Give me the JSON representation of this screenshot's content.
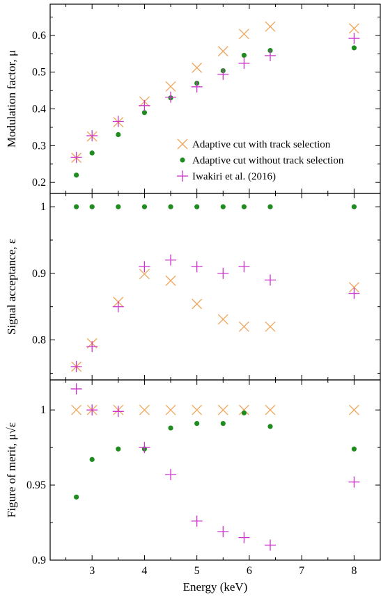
{
  "colors": {
    "adaptive_with": "#f0a55a",
    "adaptive_without": "#1f8c1f",
    "iwakiri": "#cc33cc"
  },
  "chart_data": [
    {
      "type": "scatter",
      "panel": "top",
      "ylabel": "Modulation factor, μ",
      "ylim": [
        0.17,
        0.685
      ],
      "yticks": [
        "0.2",
        "0.3",
        "0.4",
        "0.5",
        "0.6"
      ],
      "xlim": [
        2.2,
        8.5
      ],
      "legend_position": "lower-right",
      "series": [
        {
          "name": "Adaptive cut with track selection",
          "marker": "x",
          "x": [
            2.7,
            3.0,
            3.5,
            4.0,
            4.5,
            5.0,
            5.5,
            5.9,
            6.4,
            8.0
          ],
          "y": [
            0.267,
            0.325,
            0.364,
            0.42,
            0.461,
            0.512,
            0.557,
            0.604,
            0.624,
            0.619
          ]
        },
        {
          "name": "Adaptive cut without track selection",
          "marker": "dot",
          "x": [
            2.7,
            3.0,
            3.5,
            4.0,
            4.5,
            5.0,
            5.5,
            5.9,
            6.4,
            8.0
          ],
          "y": [
            0.22,
            0.28,
            0.33,
            0.39,
            0.43,
            0.47,
            0.504,
            0.546,
            0.559,
            0.566
          ]
        },
        {
          "name": "Iwakiri et al. (2016)",
          "marker": "+",
          "x": [
            2.7,
            3.0,
            3.5,
            4.0,
            4.5,
            5.0,
            5.5,
            5.9,
            6.4,
            8.0
          ],
          "y": [
            0.268,
            0.327,
            0.366,
            0.409,
            0.432,
            0.46,
            0.494,
            0.524,
            0.545,
            0.592
          ]
        }
      ]
    },
    {
      "type": "scatter",
      "panel": "middle",
      "ylabel": "Signal acceptance, ε",
      "ylim": [
        0.74,
        1.02
      ],
      "yticks": [
        "0.8",
        "0.9",
        "1"
      ],
      "xlim": [
        2.2,
        8.5
      ],
      "series": [
        {
          "name": "Adaptive cut with track selection",
          "marker": "x",
          "x": [
            2.7,
            3.0,
            3.5,
            4.0,
            4.5,
            5.0,
            5.5,
            5.9,
            6.4,
            8.0
          ],
          "y": [
            0.76,
            0.795,
            0.857,
            0.899,
            0.889,
            0.854,
            0.831,
            0.82,
            0.82,
            0.879
          ]
        },
        {
          "name": "Adaptive cut without track selection",
          "marker": "dot",
          "x": [
            2.7,
            3.0,
            3.5,
            4.0,
            4.5,
            5.0,
            5.5,
            5.9,
            6.4,
            8.0
          ],
          "y": [
            1.0,
            1.0,
            1.0,
            1.0,
            1.0,
            1.0,
            1.0,
            1.0,
            1.0,
            1.0
          ]
        },
        {
          "name": "Iwakiri et al. (2016)",
          "marker": "+",
          "x": [
            2.7,
            3.0,
            3.5,
            4.0,
            4.5,
            5.0,
            5.5,
            5.9,
            6.4,
            8.0
          ],
          "y": [
            0.76,
            0.79,
            0.85,
            0.91,
            0.92,
            0.91,
            0.9,
            0.91,
            0.89,
            0.87
          ]
        }
      ]
    },
    {
      "type": "scatter",
      "panel": "bottom",
      "ylabel": "Figure of merit, μ√ε",
      "ylim": [
        0.9,
        1.02
      ],
      "yticks": [
        "0.9",
        "0.95",
        "1"
      ],
      "xlabel": "Energy (keV)",
      "xticks": [
        "3",
        "4",
        "5",
        "6",
        "7",
        "8"
      ],
      "xlim": [
        2.2,
        8.5
      ],
      "series": [
        {
          "name": "Adaptive cut with track selection",
          "marker": "x",
          "x": [
            2.7,
            3.0,
            3.5,
            4.0,
            4.5,
            5.0,
            5.5,
            5.9,
            6.4,
            8.0
          ],
          "y": [
            1.0,
            1.0,
            1.0,
            1.0,
            1.0,
            1.0,
            1.0,
            1.0,
            1.0,
            1.0
          ]
        },
        {
          "name": "Adaptive cut without track selection",
          "marker": "dot",
          "x": [
            2.7,
            3.0,
            3.5,
            4.0,
            4.5,
            5.0,
            5.5,
            5.9,
            6.4,
            8.0
          ],
          "y": [
            0.942,
            0.967,
            0.974,
            0.974,
            0.988,
            0.991,
            0.991,
            0.998,
            0.989,
            0.974
          ]
        },
        {
          "name": "Iwakiri et al. (2016)",
          "marker": "+",
          "x": [
            2.7,
            3.0,
            3.5,
            4.0,
            4.5,
            5.0,
            5.5,
            5.9,
            6.4,
            8.0
          ],
          "y": [
            1.014,
            1.0,
            0.999,
            0.975,
            0.957,
            0.926,
            0.919,
            0.915,
            0.91,
            0.952
          ]
        }
      ]
    }
  ]
}
